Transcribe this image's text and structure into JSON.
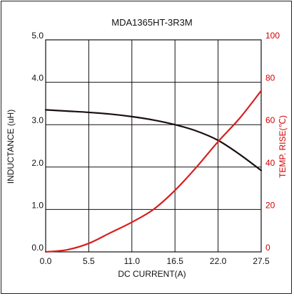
{
  "chart_data": {
    "type": "line",
    "title": "MDA1365HT-3R3M",
    "xlabel": "DC CURRENT(A)",
    "ylabel": "INDUCTANCE (uH)",
    "y2label": "TEMP. RISE(℃)",
    "xlim": [
      0,
      27.5
    ],
    "ylim": [
      0,
      5
    ],
    "y2lim": [
      0,
      100
    ],
    "x_ticks": [
      "0.0",
      "5.5",
      "11.0",
      "16.5",
      "22.0",
      "27.5"
    ],
    "y_ticks": [
      "0.0",
      "1.0",
      "2.0",
      "3.0",
      "4.0",
      "5.0"
    ],
    "y2_ticks": [
      "0",
      "20",
      "40",
      "60",
      "80",
      "100"
    ],
    "grid": true,
    "series": [
      {
        "axis": "left",
        "color": "#1a1010",
        "x": [
          0,
          2.75,
          5.5,
          8.25,
          11,
          13.75,
          16.5,
          19.25,
          22,
          24.75,
          27.5
        ],
        "y": [
          3.35,
          3.32,
          3.29,
          3.25,
          3.19,
          3.11,
          3.0,
          2.85,
          2.63,
          2.3,
          1.92
        ]
      },
      {
        "axis": "right",
        "color": "#d81e1e",
        "x": [
          0,
          2.75,
          5.5,
          8.25,
          11,
          13.75,
          16.5,
          19.25,
          22,
          24.75,
          27.5
        ],
        "y": [
          0,
          1,
          4,
          9,
          14,
          20,
          29,
          40,
          52,
          63,
          76
        ]
      }
    ]
  }
}
